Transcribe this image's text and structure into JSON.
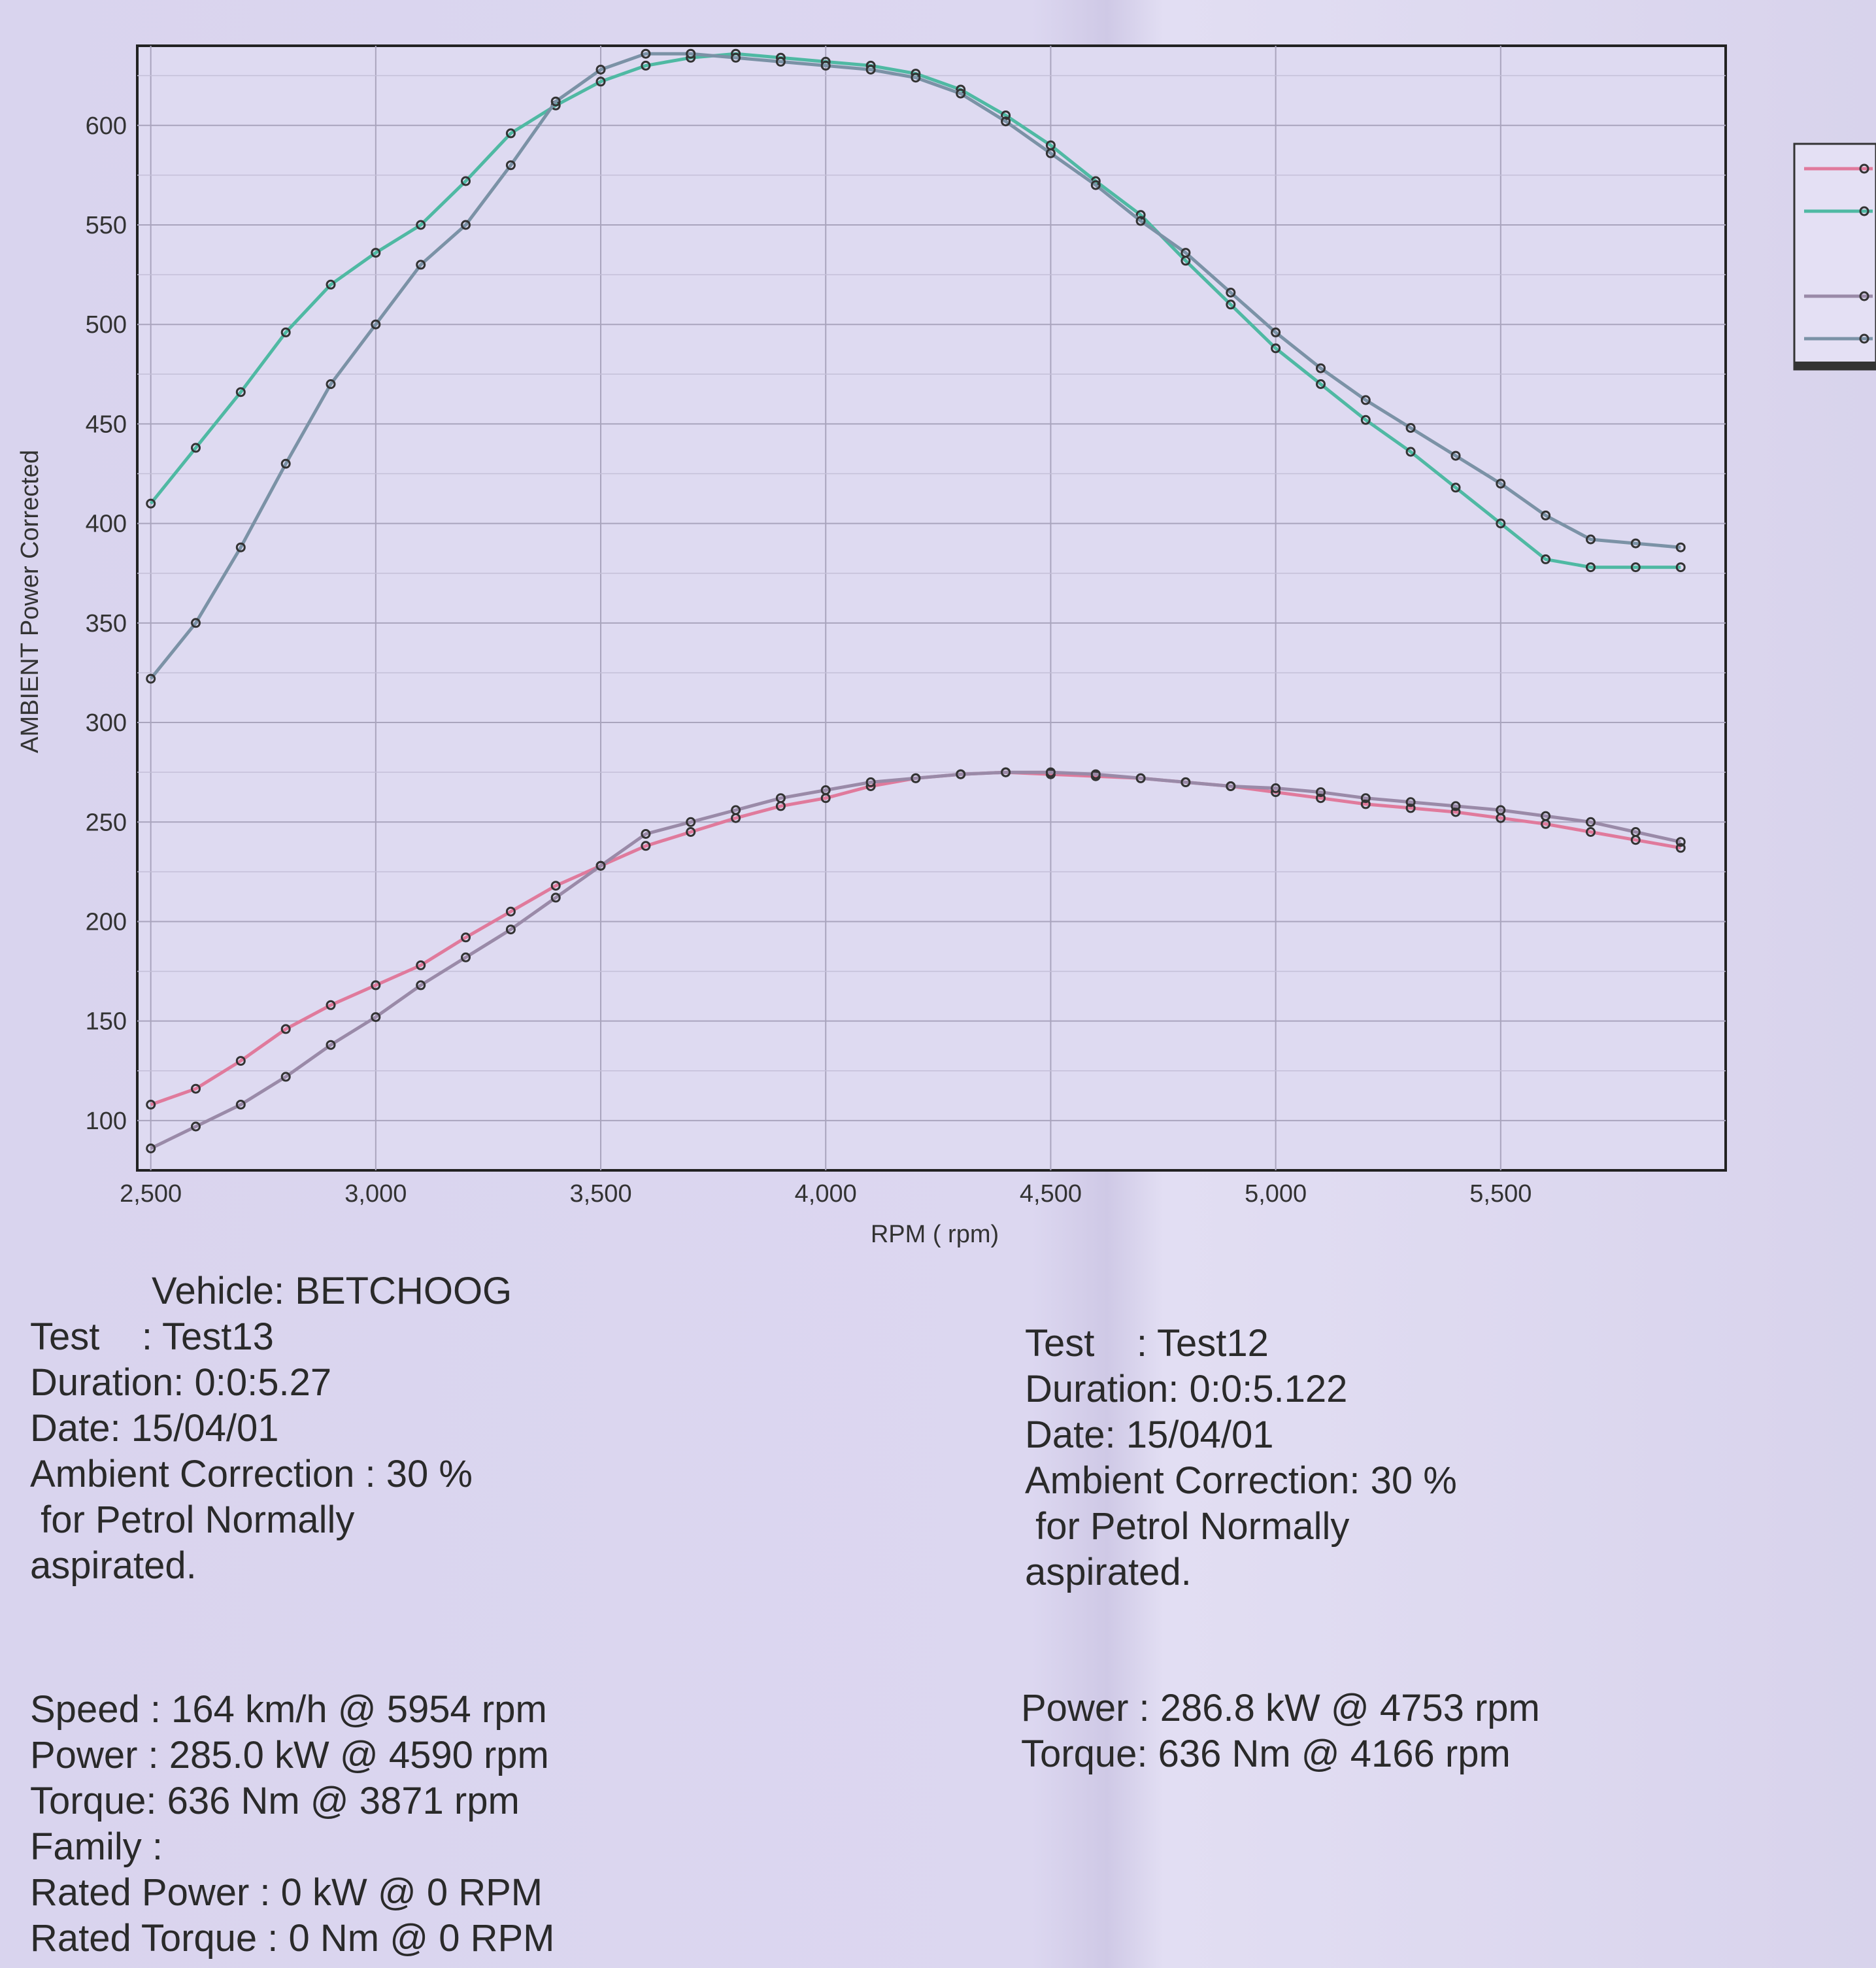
{
  "chart_data": {
    "type": "line",
    "xlabel": "RPM ( rpm)",
    "ylabel": "AMBIENT Power Corrected",
    "xlim": [
      2470,
      6000
    ],
    "ylim": [
      75,
      640
    ],
    "x_ticks": [
      "2,500",
      "3,000",
      "3,500",
      "4,000",
      "4,500",
      "5,000",
      "5,500"
    ],
    "y_ticks": [
      "100",
      "150",
      "200",
      "250",
      "300",
      "350",
      "400",
      "450",
      "500",
      "550",
      "600"
    ],
    "legend_position": "right",
    "grid": true,
    "series": [
      {
        "color": "#e07a9c",
        "x": [
          2500,
          2600,
          2700,
          2800,
          2900,
          3000,
          3100,
          3200,
          3300,
          3400,
          3500,
          3600,
          3700,
          3800,
          3900,
          4000,
          4100,
          4200,
          4300,
          4400,
          4500,
          4600,
          4700,
          4800,
          4900,
          5000,
          5100,
          5200,
          5300,
          5400,
          5500,
          5600,
          5700,
          5800,
          5900
        ],
        "y": [
          108,
          116,
          130,
          146,
          158,
          168,
          178,
          192,
          205,
          218,
          228,
          238,
          245,
          252,
          258,
          262,
          268,
          272,
          274,
          275,
          274,
          273,
          272,
          270,
          268,
          265,
          262,
          259,
          257,
          255,
          252,
          249,
          245,
          241,
          237
        ]
      },
      {
        "color": "#4fb9a3",
        "x": [
          2500,
          2600,
          2700,
          2800,
          2900,
          3000,
          3100,
          3200,
          3300,
          3400,
          3500,
          3600,
          3700,
          3800,
          3900,
          4000,
          4100,
          4200,
          4300,
          4400,
          4500,
          4600,
          4700,
          4800,
          4900,
          5000,
          5100,
          5200,
          5300,
          5400,
          5500,
          5600,
          5700,
          5800,
          5900
        ],
        "y": [
          410,
          438,
          466,
          496,
          520,
          536,
          550,
          572,
          596,
          610,
          622,
          630,
          634,
          636,
          634,
          632,
          630,
          626,
          618,
          605,
          590,
          572,
          555,
          532,
          510,
          488,
          470,
          452,
          436,
          418,
          400,
          382,
          378,
          378,
          378
        ]
      },
      {
        "color": "#9a8aa8",
        "x": [
          2500,
          2600,
          2700,
          2800,
          2900,
          3000,
          3100,
          3200,
          3300,
          3400,
          3500,
          3600,
          3700,
          3800,
          3900,
          4000,
          4100,
          4200,
          4300,
          4400,
          4500,
          4600,
          4700,
          4800,
          4900,
          5000,
          5100,
          5200,
          5300,
          5400,
          5500,
          5600,
          5700,
          5800,
          5900
        ],
        "y": [
          86,
          97,
          108,
          122,
          138,
          152,
          168,
          182,
          196,
          212,
          228,
          244,
          250,
          256,
          262,
          266,
          270,
          272,
          274,
          275,
          275,
          274,
          272,
          270,
          268,
          267,
          265,
          262,
          260,
          258,
          256,
          253,
          250,
          245,
          240
        ]
      },
      {
        "color": "#7b92a6",
        "x": [
          2500,
          2600,
          2700,
          2800,
          2900,
          3000,
          3100,
          3200,
          3300,
          3400,
          3500,
          3600,
          3700,
          3800,
          3900,
          4000,
          4100,
          4200,
          4300,
          4400,
          4500,
          4600,
          4700,
          4800,
          4900,
          5000,
          5100,
          5200,
          5300,
          5400,
          5500,
          5600,
          5700,
          5800,
          5900
        ],
        "y": [
          322,
          350,
          388,
          430,
          470,
          500,
          530,
          550,
          580,
          612,
          628,
          636,
          636,
          634,
          632,
          630,
          628,
          624,
          616,
          602,
          586,
          570,
          552,
          536,
          516,
          496,
          478,
          462,
          448,
          434,
          420,
          404,
          392,
          390,
          388
        ]
      }
    ]
  },
  "left_info": {
    "vehicle": "Vehicle: BETCHOOG",
    "test": "Test    : Test13",
    "duration": "Duration: 0:0:5.27",
    "date": "Date: 15/04/01",
    "ambient": "Ambient Correction : 30 %",
    "petrol": " for Petrol Normally",
    "aspirated": "aspirated."
  },
  "right_info": {
    "test": "Test    : Test12",
    "duration": "Duration: 0:0:5.122",
    "date": "Date: 15/04/01",
    "ambient": "Ambient Correction: 30 %",
    "petrol": " for Petrol Normally",
    "aspirated": "aspirated."
  },
  "left_results": {
    "speed": "Speed : 164 km/h @ 5954 rpm",
    "power": "Power : 285.0 kW @ 4590 rpm",
    "torque": "Torque: 636 Nm @ 3871 rpm",
    "family": "Family :",
    "rated_power": "Rated Power : 0 kW @ 0 RPM",
    "rated_torque": "Rated Torque : 0 Nm @ 0 RPM"
  },
  "right_results": {
    "power": "Power : 286.8 kW @ 4753 rpm",
    "torque": "Torque: 636 Nm @ 4166 rpm"
  }
}
